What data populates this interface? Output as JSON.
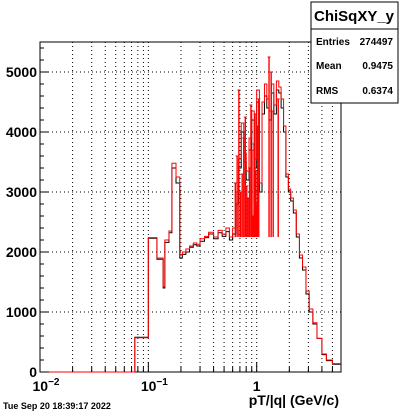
{
  "chart_data": {
    "type": "histogram",
    "title": "ChiSqXY_y",
    "xlabel": "pT/|q| (GeV/c)",
    "ylabel": "",
    "x_scale": "log",
    "xlim": [
      0.01,
      6
    ],
    "ylim": [
      0,
      5500
    ],
    "grid": true,
    "x_ticks": [
      {
        "value": 0.01,
        "base": "10",
        "exp": "−2"
      },
      {
        "value": 0.1,
        "base": "10",
        "exp": "−1"
      },
      {
        "value": 1,
        "base": "1",
        "exp": ""
      }
    ],
    "y_ticks": [
      0,
      1000,
      2000,
      3000,
      4000,
      5000
    ],
    "y_tick_labels": [
      "0",
      "1000",
      "2000",
      "3000",
      "4000",
      "5000"
    ],
    "stats": {
      "rows": [
        {
          "label": "Entries",
          "value": "274497"
        },
        {
          "label": "Mean",
          "value": "0.9475"
        },
        {
          "label": "RMS",
          "value": "0.6374"
        }
      ]
    },
    "series": [
      {
        "color": "#000000",
        "bins": [
          [
            0.01,
            0.075,
            0
          ],
          [
            0.075,
            0.1,
            580
          ],
          [
            0.1,
            0.12,
            2230
          ],
          [
            0.12,
            0.137,
            1880
          ],
          [
            0.137,
            0.142,
            1400
          ],
          [
            0.142,
            0.155,
            2160
          ],
          [
            0.155,
            0.165,
            2320
          ],
          [
            0.165,
            0.18,
            3400
          ],
          [
            0.18,
            0.195,
            3150
          ],
          [
            0.195,
            0.206,
            1900
          ],
          [
            0.206,
            0.222,
            1960
          ],
          [
            0.222,
            0.24,
            2000
          ],
          [
            0.24,
            0.26,
            2080
          ],
          [
            0.26,
            0.28,
            2120
          ],
          [
            0.28,
            0.3,
            2100
          ],
          [
            0.3,
            0.33,
            2180
          ],
          [
            0.33,
            0.36,
            2240
          ],
          [
            0.36,
            0.4,
            2300
          ],
          [
            0.4,
            0.44,
            2220
          ],
          [
            0.44,
            0.48,
            2320
          ],
          [
            0.48,
            0.52,
            2260
          ],
          [
            0.52,
            0.56,
            2340
          ],
          [
            0.56,
            0.6,
            2200
          ],
          [
            0.6,
            0.64,
            2300
          ],
          [
            0.64,
            0.68,
            2800
          ],
          [
            0.68,
            0.72,
            3400
          ],
          [
            0.72,
            0.76,
            4000
          ],
          [
            0.76,
            0.8,
            3500
          ],
          [
            0.8,
            0.85,
            3200
          ],
          [
            0.85,
            0.9,
            3700
          ],
          [
            0.9,
            0.95,
            4200
          ],
          [
            0.95,
            1.0,
            3400
          ],
          [
            1.0,
            1.06,
            4500
          ],
          [
            1.06,
            1.12,
            3000
          ],
          [
            1.12,
            1.18,
            4300
          ],
          [
            1.18,
            1.24,
            4600
          ],
          [
            1.24,
            1.3,
            4400
          ],
          [
            1.3,
            1.37,
            4200
          ],
          [
            1.37,
            1.44,
            4650
          ],
          [
            1.44,
            1.52,
            4300
          ],
          [
            1.52,
            1.6,
            4700
          ],
          [
            1.6,
            1.68,
            4650
          ],
          [
            1.68,
            1.77,
            4400
          ],
          [
            1.77,
            1.86,
            4000
          ],
          [
            1.86,
            1.96,
            3250
          ],
          [
            1.96,
            2.06,
            3000
          ],
          [
            2.06,
            2.18,
            2850
          ],
          [
            2.18,
            2.32,
            2650
          ],
          [
            2.32,
            2.48,
            2250
          ],
          [
            2.48,
            2.65,
            1900
          ],
          [
            2.65,
            2.85,
            1700
          ],
          [
            2.85,
            3.05,
            1300
          ],
          [
            3.05,
            3.3,
            1000
          ],
          [
            3.3,
            3.6,
            800
          ],
          [
            3.6,
            4.0,
            560
          ],
          [
            4.0,
            4.4,
            290
          ],
          [
            4.4,
            5.0,
            190
          ],
          [
            5.0,
            6.0,
            130
          ]
        ]
      },
      {
        "color": "#ff0000",
        "bins": [
          [
            0.01,
            0.075,
            0
          ],
          [
            0.075,
            0.1,
            570
          ],
          [
            0.1,
            0.12,
            2240
          ],
          [
            0.12,
            0.137,
            1900
          ],
          [
            0.137,
            0.142,
            1420
          ],
          [
            0.142,
            0.155,
            2200
          ],
          [
            0.155,
            0.165,
            2350
          ],
          [
            0.165,
            0.18,
            3480
          ],
          [
            0.18,
            0.195,
            3250
          ],
          [
            0.195,
            0.206,
            1950
          ],
          [
            0.206,
            0.222,
            2000
          ],
          [
            0.222,
            0.24,
            2050
          ],
          [
            0.24,
            0.26,
            2100
          ],
          [
            0.26,
            0.28,
            2150
          ],
          [
            0.28,
            0.3,
            2130
          ],
          [
            0.3,
            0.33,
            2220
          ],
          [
            0.33,
            0.36,
            2260
          ],
          [
            0.36,
            0.4,
            2330
          ],
          [
            0.4,
            0.44,
            2250
          ],
          [
            0.44,
            0.48,
            2360
          ],
          [
            0.48,
            0.52,
            2300
          ],
          [
            0.52,
            0.56,
            2400
          ],
          [
            0.56,
            0.6,
            2250
          ],
          [
            0.6,
            0.64,
            2400
          ],
          [
            0.64,
            0.68,
            3000
          ],
          [
            0.68,
            0.72,
            3550
          ],
          [
            0.72,
            0.76,
            4150
          ],
          [
            0.76,
            0.8,
            3650
          ],
          [
            0.8,
            0.85,
            3350
          ],
          [
            0.85,
            0.9,
            3900
          ],
          [
            0.9,
            0.95,
            4350
          ],
          [
            0.95,
            1.0,
            3550
          ],
          [
            1.0,
            1.06,
            4700
          ],
          [
            1.06,
            1.12,
            3150
          ],
          [
            1.12,
            1.18,
            4500
          ],
          [
            1.18,
            1.24,
            4800
          ],
          [
            1.24,
            1.3,
            4550
          ],
          [
            1.3,
            1.37,
            4350
          ],
          [
            1.37,
            1.44,
            4800
          ],
          [
            1.44,
            1.52,
            4450
          ],
          [
            1.52,
            1.6,
            4850
          ],
          [
            1.6,
            1.68,
            4750
          ],
          [
            1.68,
            1.77,
            4550
          ],
          [
            1.77,
            1.86,
            4100
          ],
          [
            1.86,
            1.96,
            3300
          ],
          [
            1.96,
            2.06,
            3050
          ],
          [
            2.06,
            2.18,
            2900
          ],
          [
            2.18,
            2.32,
            2700
          ],
          [
            2.32,
            2.48,
            2300
          ],
          [
            2.48,
            2.65,
            1950
          ],
          [
            2.65,
            2.85,
            1750
          ],
          [
            2.85,
            3.05,
            1350
          ],
          [
            3.05,
            3.3,
            1050
          ],
          [
            3.3,
            3.6,
            820
          ],
          [
            3.6,
            4.0,
            560
          ],
          [
            4.0,
            4.4,
            300
          ],
          [
            4.4,
            5.0,
            200
          ],
          [
            5.0,
            6.0,
            140
          ]
        ],
        "spikes": [
          [
            0.635,
            3150
          ],
          [
            0.66,
            3600
          ],
          [
            0.685,
            4700
          ],
          [
            0.71,
            3000
          ],
          [
            0.735,
            3300
          ],
          [
            0.76,
            3900
          ],
          [
            0.785,
            4250
          ],
          [
            0.81,
            3100
          ],
          [
            0.835,
            2900
          ],
          [
            0.86,
            3400
          ],
          [
            0.885,
            4450
          ],
          [
            0.905,
            3700
          ],
          [
            0.925,
            2600
          ],
          [
            0.945,
            3800
          ],
          [
            0.965,
            4300
          ],
          [
            0.985,
            3350
          ],
          [
            1.005,
            2800
          ],
          [
            1.02,
            4100
          ],
          [
            1.045,
            4550
          ],
          [
            1.3,
            5250
          ],
          [
            1.36,
            5000
          ],
          [
            1.42,
            4350
          ],
          [
            1.58,
            4550
          ]
        ]
      }
    ]
  },
  "footer": {
    "timestamp": "Tue Sep 20 18:39:17 2022"
  }
}
